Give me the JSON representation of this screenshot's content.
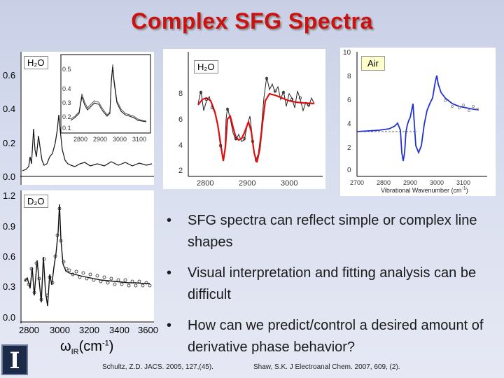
{
  "title": "Complex SFG Spectra",
  "panels": {
    "h2o_left": {
      "label": "H₂O",
      "y_ticks": [
        "0.6",
        "0.4",
        "0.2",
        "0.0"
      ],
      "inset_y_ticks": [
        "0.5",
        "0.4",
        "0.3",
        "0.2",
        "0.1"
      ],
      "inset_x_ticks": [
        "2800",
        "2900",
        "3000",
        "3100"
      ]
    },
    "d2o": {
      "label": "D₂O",
      "y_ticks": [
        "1.2",
        "0.9",
        "0.6",
        "0.3",
        "0.0"
      ],
      "x_ticks": [
        "2800",
        "3000",
        "3200",
        "3400",
        "3600"
      ],
      "x_label": "ω",
      "x_label_sub": "IR",
      "x_label_unit": "(cm",
      "x_label_sup": "-1",
      "x_label_close": ")"
    },
    "h2o_center": {
      "label": "H₂O",
      "y_ticks": [
        "8",
        "6",
        "4",
        "2"
      ],
      "x_ticks": [
        "2800",
        "2900",
        "3000"
      ]
    },
    "air": {
      "label": "Air",
      "y_ticks": [
        "10",
        "8",
        "6",
        "4",
        "2",
        "0"
      ],
      "x_ticks": [
        "2700",
        "2800",
        "2900",
        "3000",
        "3100"
      ],
      "x_label": "Vibrational Wavenumber (cm",
      "x_label_sup": "-1",
      "x_label_close": ")"
    }
  },
  "bullets": [
    "SFG spectra can reflect simple or complex line shapes",
    "Visual interpretation and fitting analysis can be difficult",
    "How can we predict/control a desired amount of derivative phase behavior?"
  ],
  "bullet_symbol": "•",
  "references": {
    "left": "Schultz, Z.D. JACS. 2005, 127,(45).",
    "right": "Shaw, S.K. J Electroanal Chem. 2007, 609, (2)."
  },
  "logo_letter": "I",
  "colors": {
    "title": "#cc1111",
    "fit_red": "#dd1111",
    "air_blue": "#2233cc",
    "background": "#d4daec"
  }
}
